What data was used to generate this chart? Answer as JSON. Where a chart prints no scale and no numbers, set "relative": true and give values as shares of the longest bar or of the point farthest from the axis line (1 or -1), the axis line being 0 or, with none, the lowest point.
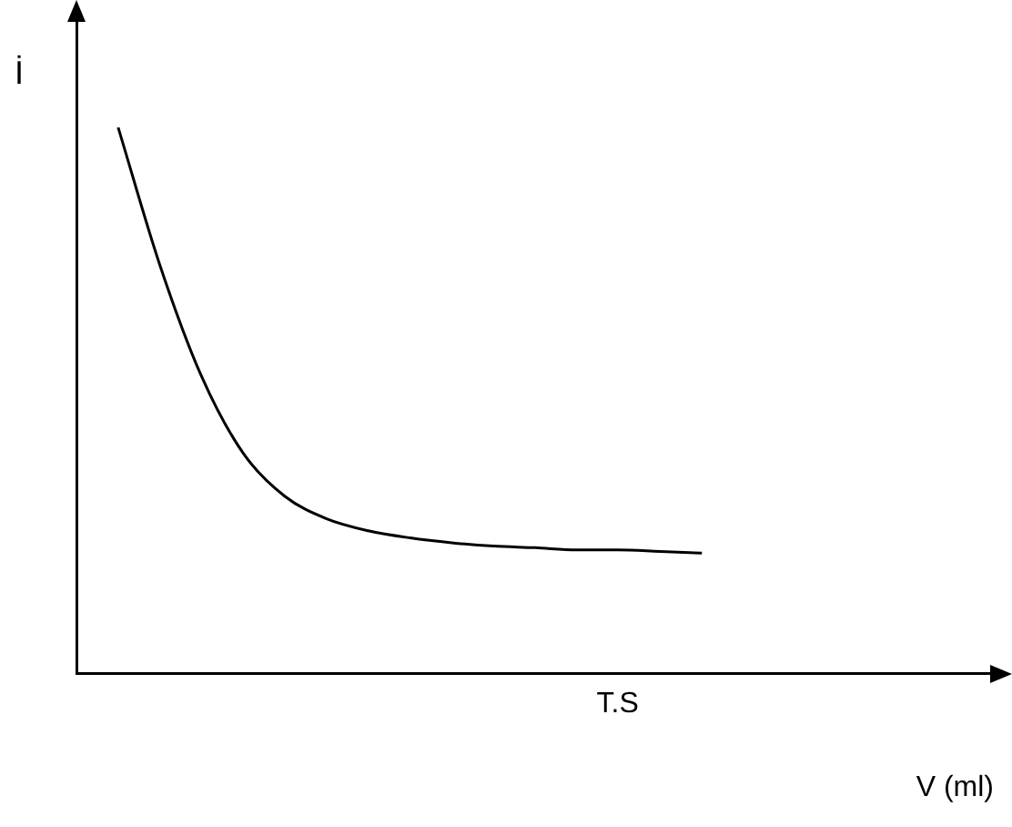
{
  "chart_data": {
    "type": "line",
    "relative": true,
    "xlabel": "V (ml)",
    "ylabel": "İ",
    "color": "#000000",
    "marker": "none",
    "line_style": "solid",
    "grid": false,
    "legend": false,
    "annotations": [
      "T.S"
    ],
    "categories": [
      null,
      null,
      null,
      null,
      null,
      null,
      null,
      null,
      null,
      null,
      null,
      null,
      null,
      null,
      null,
      null,
      null,
      null,
      null,
      null,
      null,
      null,
      null
    ],
    "values": [
      null,
      1,
      0.748,
      0.544,
      0.403,
      0.324,
      0.283,
      0.261,
      0.248,
      0.239,
      0.233,
      0.23,
      0.226,
      0.226,
      0.223,
      0.22,
      null,
      null,
      null,
      null,
      null,
      null,
      null
    ]
  }
}
